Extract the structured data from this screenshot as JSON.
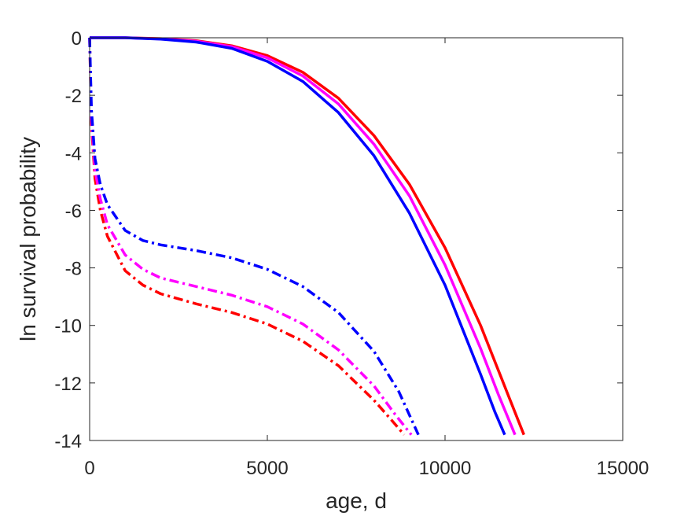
{
  "chart_data": {
    "type": "line",
    "title": "",
    "xlabel": "age, d",
    "ylabel": "ln survival probability",
    "xlim": [
      0,
      15000
    ],
    "ylim": [
      -14,
      0
    ],
    "xticks": [
      0,
      5000,
      10000,
      15000
    ],
    "yticks": [
      0,
      -2,
      -4,
      -6,
      -8,
      -10,
      -12,
      -14
    ],
    "grid": false,
    "legend": "none",
    "series": [
      {
        "color": "#ff0000",
        "style": "solid",
        "points": [
          [
            0,
            0
          ],
          [
            1000,
            0
          ],
          [
            2000,
            -0.03
          ],
          [
            3000,
            -0.1
          ],
          [
            4000,
            -0.28
          ],
          [
            5000,
            -0.62
          ],
          [
            6000,
            -1.2
          ],
          [
            7000,
            -2.1
          ],
          [
            8000,
            -3.4
          ],
          [
            9000,
            -5.1
          ],
          [
            10000,
            -7.3
          ],
          [
            11000,
            -10.0
          ],
          [
            11800,
            -12.5
          ],
          [
            12220,
            -13.8
          ]
        ]
      },
      {
        "color": "#ff00ff",
        "style": "solid",
        "points": [
          [
            0,
            0
          ],
          [
            1000,
            0
          ],
          [
            2000,
            -0.04
          ],
          [
            3000,
            -0.12
          ],
          [
            4000,
            -0.31
          ],
          [
            5000,
            -0.7
          ],
          [
            6000,
            -1.33
          ],
          [
            7000,
            -2.3
          ],
          [
            8000,
            -3.7
          ],
          [
            9000,
            -5.5
          ],
          [
            10000,
            -7.9
          ],
          [
            11000,
            -10.8
          ],
          [
            11500,
            -12.4
          ],
          [
            11970,
            -13.8
          ]
        ]
      },
      {
        "color": "#0000ff",
        "style": "solid",
        "points": [
          [
            0,
            0
          ],
          [
            1000,
            0
          ],
          [
            2000,
            -0.05
          ],
          [
            3000,
            -0.15
          ],
          [
            4000,
            -0.37
          ],
          [
            5000,
            -0.82
          ],
          [
            6000,
            -1.52
          ],
          [
            7000,
            -2.6
          ],
          [
            8000,
            -4.1
          ],
          [
            9000,
            -6.1
          ],
          [
            10000,
            -8.6
          ],
          [
            11000,
            -11.7
          ],
          [
            11400,
            -13.0
          ],
          [
            11680,
            -13.8
          ]
        ]
      },
      {
        "color": "#ff0000",
        "style": "dashdot",
        "points": [
          [
            0,
            0
          ],
          [
            50,
            -3.0
          ],
          [
            150,
            -4.9
          ],
          [
            300,
            -6.0
          ],
          [
            500,
            -6.9
          ],
          [
            1000,
            -8.1
          ],
          [
            1500,
            -8.6
          ],
          [
            2000,
            -8.9
          ],
          [
            3000,
            -9.25
          ],
          [
            4000,
            -9.55
          ],
          [
            5000,
            -9.95
          ],
          [
            6000,
            -10.55
          ],
          [
            7000,
            -11.4
          ],
          [
            8000,
            -12.6
          ],
          [
            8500,
            -13.3
          ],
          [
            8850,
            -13.8
          ]
        ]
      },
      {
        "color": "#ff00ff",
        "style": "dashdot",
        "points": [
          [
            0,
            0
          ],
          [
            50,
            -2.8
          ],
          [
            150,
            -4.6
          ],
          [
            300,
            -5.6
          ],
          [
            500,
            -6.5
          ],
          [
            1000,
            -7.55
          ],
          [
            1500,
            -8.05
          ],
          [
            2000,
            -8.35
          ],
          [
            3000,
            -8.65
          ],
          [
            4000,
            -8.95
          ],
          [
            5000,
            -9.35
          ],
          [
            6000,
            -9.95
          ],
          [
            7000,
            -10.85
          ],
          [
            8000,
            -12.1
          ],
          [
            8600,
            -13.1
          ],
          [
            9050,
            -13.8
          ]
        ]
      },
      {
        "color": "#0000ff",
        "style": "dashdot",
        "points": [
          [
            0,
            0
          ],
          [
            50,
            -2.5
          ],
          [
            150,
            -4.2
          ],
          [
            300,
            -5.1
          ],
          [
            500,
            -5.8
          ],
          [
            1000,
            -6.7
          ],
          [
            1500,
            -7.05
          ],
          [
            2000,
            -7.2
          ],
          [
            3000,
            -7.4
          ],
          [
            4000,
            -7.65
          ],
          [
            5000,
            -8.05
          ],
          [
            6000,
            -8.65
          ],
          [
            7000,
            -9.55
          ],
          [
            8000,
            -10.9
          ],
          [
            8700,
            -12.3
          ],
          [
            9250,
            -13.8
          ]
        ]
      }
    ]
  }
}
